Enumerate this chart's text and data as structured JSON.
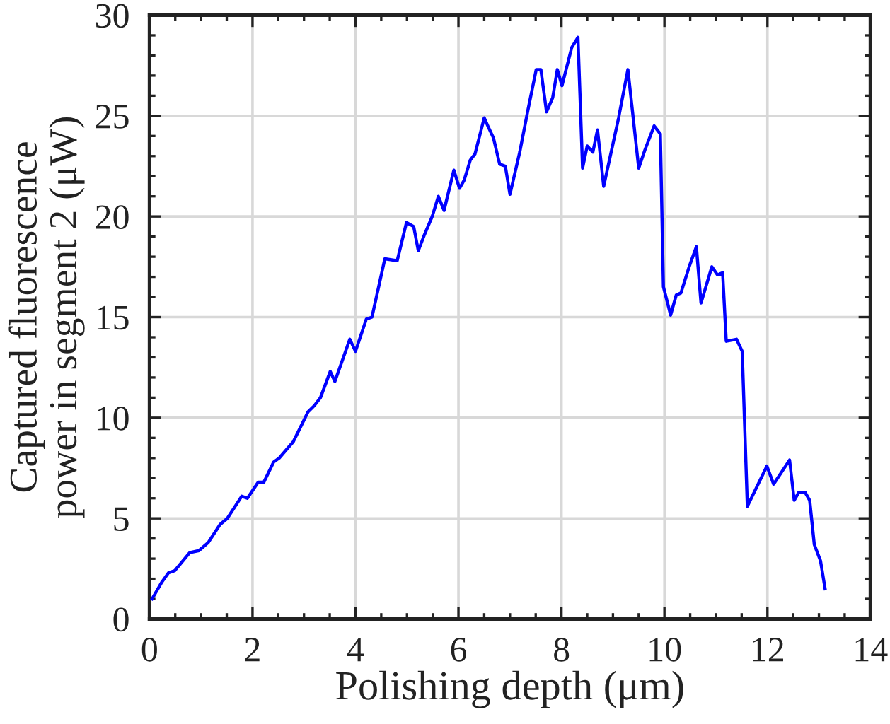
{
  "chart_data": {
    "type": "line",
    "xlabel": "Polishing depth (μm)",
    "ylabel": "Captured fluorescence\npower in segment 2 (μW)",
    "x": [
      0.05,
      0.23,
      0.37,
      0.49,
      0.78,
      0.96,
      1.14,
      1.37,
      1.51,
      1.79,
      1.9,
      2.11,
      2.22,
      2.41,
      2.52,
      2.72,
      2.79,
      3.08,
      3.2,
      3.32,
      3.51,
      3.6,
      3.89,
      4.0,
      4.21,
      4.32,
      4.57,
      4.81,
      4.99,
      5.13,
      5.22,
      5.34,
      5.49,
      5.61,
      5.72,
      5.91,
      6.02,
      6.11,
      6.23,
      6.32,
      6.5,
      6.57,
      6.68,
      6.8,
      6.91,
      7.0,
      7.19,
      7.35,
      7.51,
      7.6,
      7.71,
      7.83,
      7.92,
      8.01,
      8.2,
      8.32,
      8.41,
      8.5,
      8.61,
      8.7,
      8.82,
      9.11,
      9.29,
      9.5,
      9.62,
      9.8,
      9.92,
      9.98,
      10.12,
      10.23,
      10.32,
      10.48,
      10.62,
      10.71,
      10.92,
      11.03,
      11.13,
      11.2,
      11.4,
      11.51,
      11.61,
      11.99,
      12.12,
      12.43,
      12.52,
      12.61,
      12.73,
      12.82,
      12.91,
      13.03,
      13.12
    ],
    "series": [
      {
        "color": "#0000ff",
        "values": [
          1.0,
          1.8,
          2.3,
          2.4,
          3.3,
          3.4,
          3.8,
          4.7,
          5.0,
          6.1,
          6.0,
          6.8,
          6.8,
          7.8,
          8.0,
          8.6,
          8.8,
          10.3,
          10.6,
          11.0,
          12.3,
          11.8,
          13.9,
          13.3,
          14.9,
          15.0,
          17.9,
          17.8,
          19.7,
          19.5,
          18.3,
          19.1,
          20.0,
          21.0,
          20.3,
          22.3,
          21.4,
          21.8,
          22.8,
          23.1,
          24.9,
          24.5,
          23.9,
          22.6,
          22.5,
          21.1,
          23.2,
          25.3,
          27.3,
          27.3,
          25.2,
          25.9,
          27.3,
          26.5,
          28.4,
          28.9,
          22.4,
          23.5,
          23.2,
          24.3,
          21.5,
          24.9,
          27.3,
          22.4,
          23.3,
          24.5,
          24.1,
          16.5,
          15.1,
          16.1,
          16.2,
          17.5,
          18.5,
          15.7,
          17.5,
          17.1,
          17.2,
          13.8,
          13.9,
          13.3,
          5.6,
          7.6,
          6.7,
          7.9,
          5.9,
          6.3,
          6.3,
          5.9,
          3.7,
          2.9,
          1.5
        ]
      }
    ],
    "xlim": [
      0,
      14
    ],
    "ylim": [
      0,
      30
    ],
    "xticks": [
      0,
      {
        "value": 0.5,
        "label": null
      },
      {
        "value": 1,
        "label": null
      },
      {
        "value": 1.5,
        "label": null
      },
      2,
      {
        "value": 2.5,
        "label": null
      },
      {
        "value": 3,
        "label": null
      },
      {
        "value": 3.5,
        "label": null
      },
      4,
      {
        "value": 4.5,
        "label": null
      },
      {
        "value": 5,
        "label": null
      },
      {
        "value": 5.5,
        "label": null
      },
      6,
      {
        "value": 6.5,
        "label": null
      },
      {
        "value": 7,
        "label": null
      },
      {
        "value": 7.5,
        "label": null
      },
      8,
      {
        "value": 8.5,
        "label": null
      },
      {
        "value": 9,
        "label": null
      },
      {
        "value": 9.5,
        "label": null
      },
      10,
      {
        "value": 10.5,
        "label": null
      },
      {
        "value": 11,
        "label": null
      },
      {
        "value": 11.5,
        "label": null
      },
      12,
      {
        "value": 12.5,
        "label": null
      },
      {
        "value": 13,
        "label": null
      },
      {
        "value": 13.5,
        "label": null
      },
      14
    ],
    "yticks": [
      0,
      {
        "value": 1,
        "label": null
      },
      {
        "value": 2,
        "label": null
      },
      {
        "value": 3,
        "label": null
      },
      {
        "value": 4,
        "label": null
      },
      5,
      {
        "value": 6,
        "label": null
      },
      {
        "value": 7,
        "label": null
      },
      {
        "value": 8,
        "label": null
      },
      {
        "value": 9,
        "label": null
      },
      10,
      {
        "value": 11,
        "label": null
      },
      {
        "value": 12,
        "label": null
      },
      {
        "value": 13,
        "label": null
      },
      {
        "value": 14,
        "label": null
      },
      15,
      {
        "value": 16,
        "label": null
      },
      {
        "value": 17,
        "label": null
      },
      {
        "value": 18,
        "label": null
      },
      {
        "value": 19,
        "label": null
      },
      20,
      {
        "value": 21,
        "label": null
      },
      {
        "value": 22,
        "label": null
      },
      {
        "value": 23,
        "label": null
      },
      {
        "value": 24,
        "label": null
      },
      25,
      {
        "value": 26,
        "label": null
      },
      {
        "value": 27,
        "label": null
      },
      {
        "value": 28,
        "label": null
      },
      {
        "value": 29,
        "label": null
      },
      30
    ],
    "grid": true,
    "line_style": "solid"
  }
}
